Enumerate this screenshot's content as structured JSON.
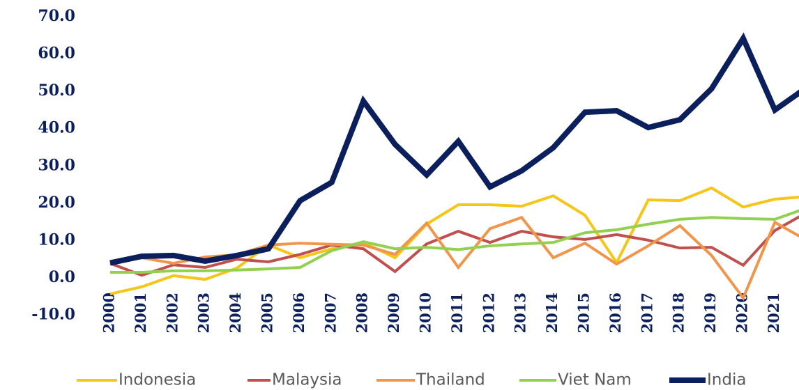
{
  "chart_data": {
    "type": "line",
    "categories": [
      "2000",
      "2001",
      "2002",
      "2003",
      "2004",
      "2005",
      "2006",
      "2007",
      "2008",
      "2009",
      "2010",
      "2011",
      "2012",
      "2013",
      "2014",
      "2015",
      "2016",
      "2017",
      "2018",
      "2019",
      "2020",
      "2021",
      null
    ],
    "series": [
      {
        "name": "Indonesia",
        "color": "#f5c518",
        "values": [
          -4.3,
          -2.4,
          0.6,
          -0.4,
          2.6,
          8.8,
          5.4,
          7.8,
          9.5,
          5.4,
          14.4,
          19.6,
          19.6,
          19.2,
          22.0,
          16.8,
          4.1,
          20.9,
          20.7,
          24.1,
          19.0,
          21.1,
          21.8
        ]
      },
      {
        "name": "Malaysia",
        "color": "#c0504d",
        "values": [
          3.9,
          0.7,
          3.5,
          2.8,
          5.0,
          4.3,
          6.3,
          8.8,
          7.8,
          1.7,
          9.1,
          12.5,
          9.5,
          12.5,
          11.0,
          10.3,
          11.6,
          10.1,
          8.0,
          8.2,
          3.4,
          12.7,
          17.5
        ]
      },
      {
        "name": "Thailand",
        "color": "#f0954a",
        "values": [
          3.9,
          5.4,
          3.9,
          5.6,
          6.2,
          8.8,
          9.3,
          9.0,
          8.8,
          6.3,
          14.7,
          2.8,
          13.2,
          16.2,
          5.4,
          9.3,
          3.7,
          8.6,
          14.0,
          6.0,
          -5.4,
          14.9,
          10.1
        ]
      },
      {
        "name": "Viet Nam",
        "color": "#92d050",
        "values": [
          1.5,
          1.5,
          1.9,
          1.9,
          2.1,
          2.4,
          2.8,
          7.3,
          9.7,
          7.8,
          8.2,
          7.6,
          8.6,
          9.1,
          9.5,
          12.1,
          12.9,
          14.4,
          15.7,
          16.2,
          15.9,
          15.7,
          18.7
        ]
      },
      {
        "name": "India",
        "color": "#0b1f5c",
        "values": [
          4.0,
          5.8,
          6.0,
          4.5,
          6.0,
          7.8,
          20.7,
          25.6,
          47.4,
          35.8,
          27.6,
          36.6,
          24.4,
          28.7,
          34.9,
          44.4,
          44.8,
          40.3,
          42.4,
          50.7,
          64.2,
          45.0,
          51.0
        ]
      }
    ],
    "ylim": [
      -10,
      70
    ],
    "yticks": [
      {
        "value": -10,
        "label": "-10.0"
      },
      {
        "value": 0,
        "label": "0.0"
      },
      {
        "value": 10,
        "label": "10.0"
      },
      {
        "value": 20,
        "label": "20.0"
      },
      {
        "value": 30,
        "label": "30.0"
      },
      {
        "value": 40,
        "label": "40.0"
      },
      {
        "value": 50,
        "label": "50.0"
      },
      {
        "value": 60,
        "label": "60.0"
      },
      {
        "value": 70,
        "label": "70.0"
      }
    ],
    "grid": false,
    "legend": "bottom"
  }
}
